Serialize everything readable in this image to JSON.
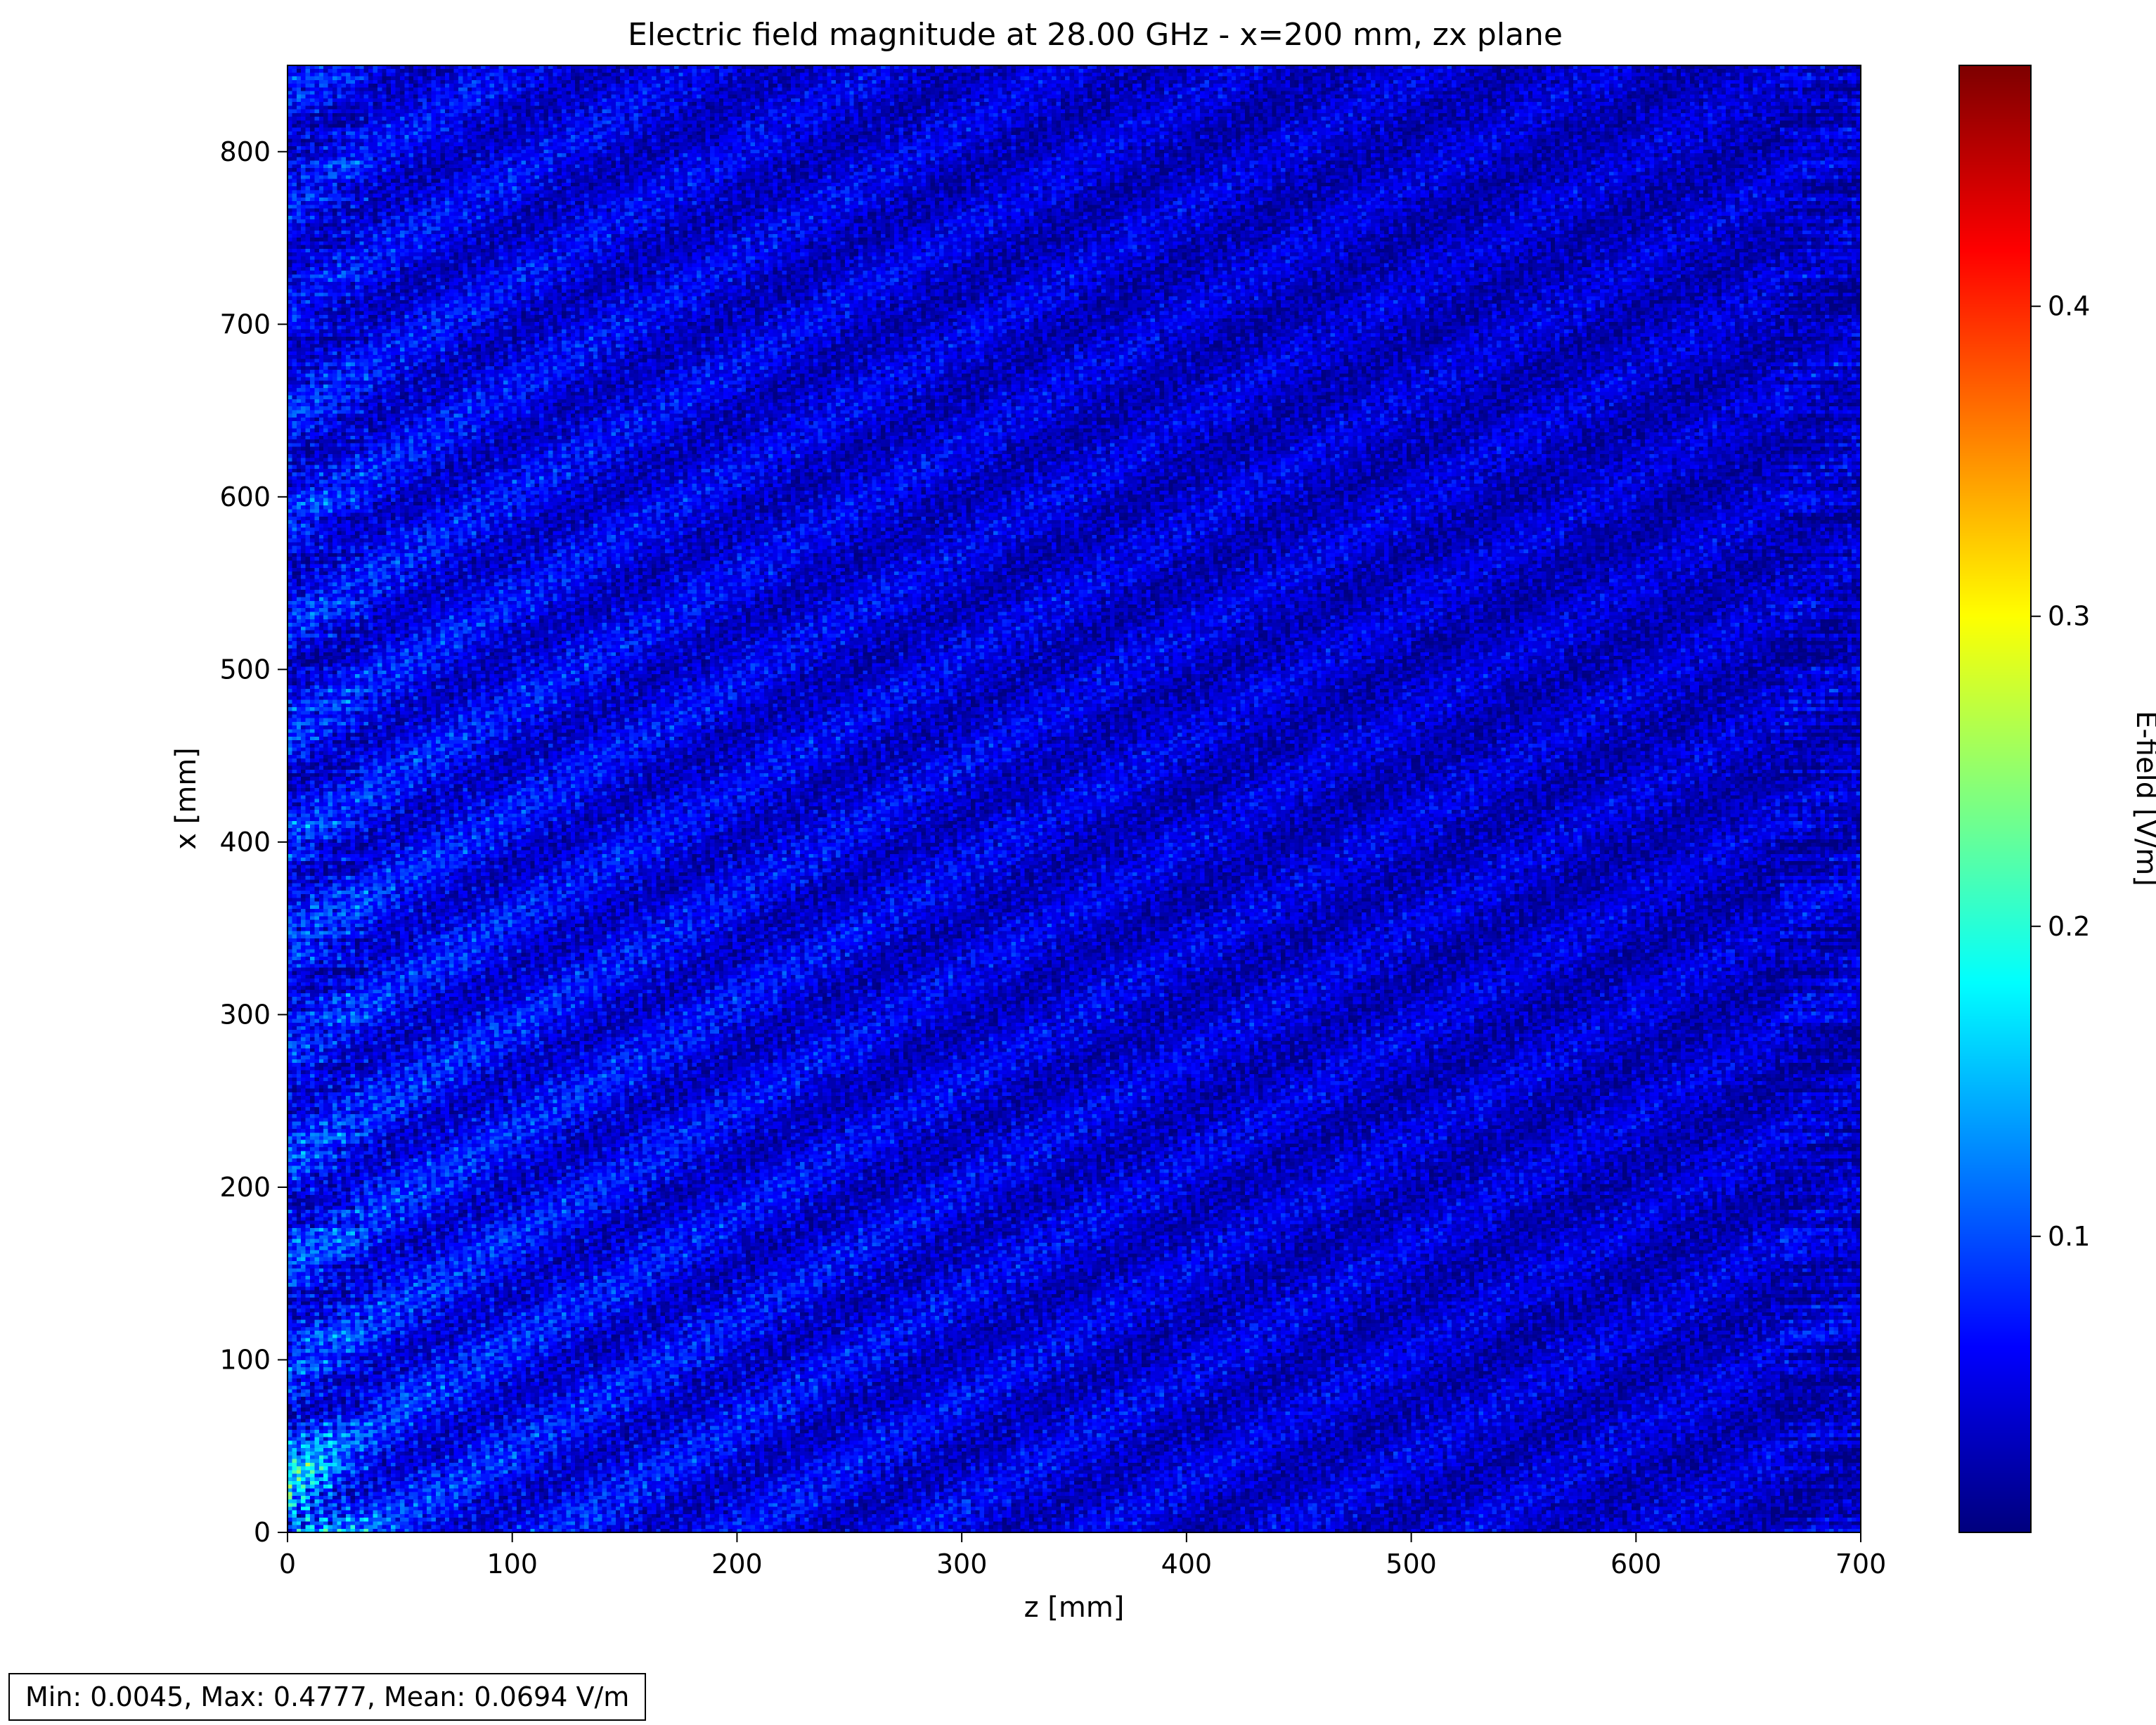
{
  "chart_data": {
    "type": "heatmap",
    "title": "Electric field magnitude at 28.00 GHz - x=200 mm, zx plane",
    "xlabel": "z [mm]",
    "ylabel": "x [mm]",
    "xlim": [
      0,
      700
    ],
    "ylim": [
      0,
      850
    ],
    "x_ticks": [
      0,
      100,
      200,
      300,
      400,
      500,
      600,
      700
    ],
    "y_ticks": [
      0,
      100,
      200,
      300,
      400,
      500,
      600,
      700,
      800
    ],
    "colormap": "jet",
    "colorbar": {
      "label": "E-field [V/m]",
      "range": [
        0.0045,
        0.4777
      ],
      "ticks": [
        0.1,
        0.2,
        0.3,
        0.4
      ]
    },
    "grid": false,
    "stats": {
      "min": 0.0045,
      "max": 0.4777,
      "mean": 0.0694
    }
  },
  "stats_text": "Min: 0.0045, Max: 0.4777, Mean: 0.0694 V/m"
}
